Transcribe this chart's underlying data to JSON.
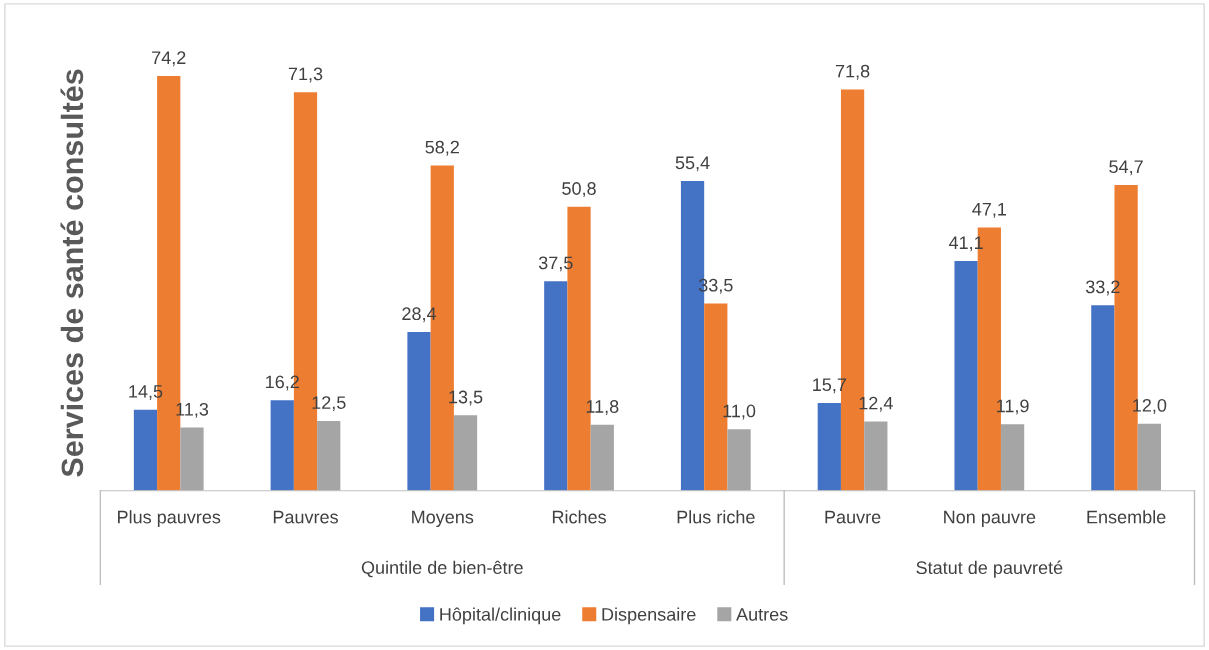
{
  "chart_data": {
    "type": "bar",
    "ylabel": "Services de santé consultés",
    "categories": [
      "Plus pauvres",
      "Pauvres",
      "Moyens",
      "Riches",
      "Plus riche",
      "Pauvre",
      "Non pauvre",
      "Ensemble"
    ],
    "series": [
      {
        "name": "Hôpital/clinique",
        "color": "#4472c4",
        "values": [
          14.5,
          16.2,
          28.4,
          37.5,
          55.4,
          15.7,
          41.1,
          33.2
        ],
        "value_labels": [
          "14,5",
          "16,2",
          "28,4",
          "37,5",
          "55,4",
          "15,7",
          "41,1",
          "33,2"
        ]
      },
      {
        "name": "Dispensaire",
        "color": "#ed7d31",
        "values": [
          74.2,
          71.3,
          58.2,
          50.8,
          33.5,
          71.8,
          47.1,
          54.7
        ],
        "value_labels": [
          "74,2",
          "71,3",
          "58,2",
          "50,8",
          "33,5",
          "71,8",
          "47,1",
          "54,7"
        ]
      },
      {
        "name": "Autres",
        "color": "#a5a5a5",
        "values": [
          11.3,
          12.5,
          13.5,
          11.8,
          11.0,
          12.4,
          11.9,
          12.0
        ],
        "value_labels": [
          "11,3",
          "12,5",
          "13,5",
          "11,8",
          "11,0",
          "12,4",
          "11,9",
          "12,0"
        ]
      }
    ],
    "annotations": [
      "Quintile de bien-être",
      "Statut de pauvreté"
    ],
    "legend": "bottom",
    "grid": false
  }
}
